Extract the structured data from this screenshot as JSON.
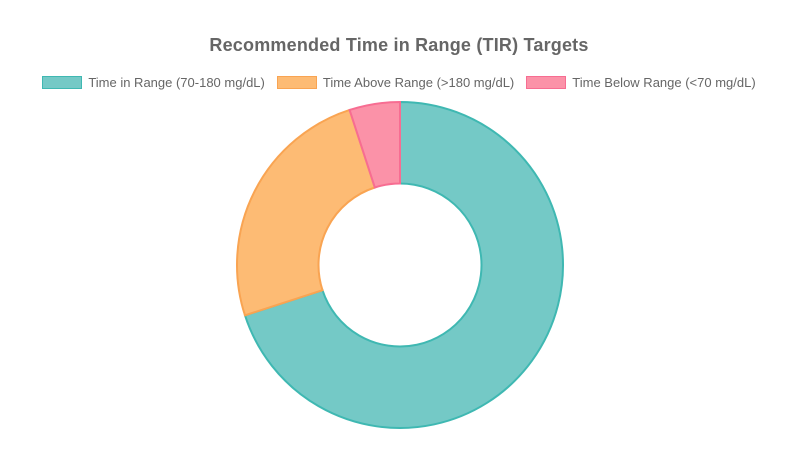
{
  "page": {
    "background": "#ffffff",
    "text_color": "#666666"
  },
  "chart_data": {
    "type": "pie",
    "subtype": "doughnut",
    "title": "Recommended Time in Range (TIR) Targets",
    "labels": [
      "Time in Range (70-180 mg/dL)",
      "Time Above Range (>180 mg/dL)",
      "Time Below Range (<70 mg/dL)"
    ],
    "values": [
      70,
      25,
      5
    ],
    "value_unit": "percent",
    "colors": [
      "#74C9C6",
      "#FDBB74",
      "#FB92A8"
    ],
    "border_colors": [
      "#3FB8B2",
      "#F9A452",
      "#F76D92"
    ],
    "border_width": 2,
    "cutout_percent": 50,
    "start_angle_deg": 0,
    "direction": "clockwise",
    "legend_position": "top",
    "legend_text_color": "#666666",
    "title_color": "#666666",
    "background": "#ffffff"
  }
}
